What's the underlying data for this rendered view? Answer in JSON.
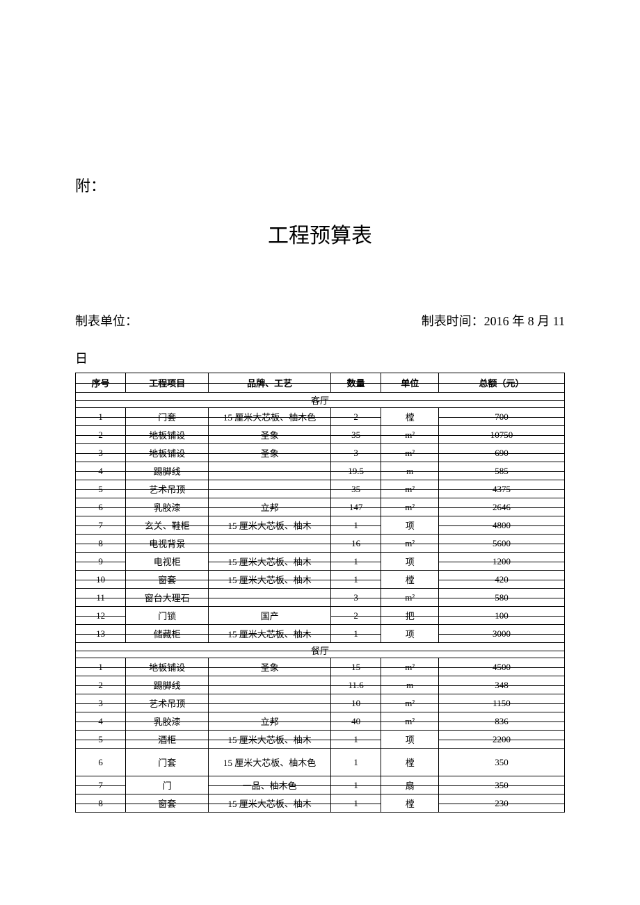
{
  "attachment_label": "附：",
  "title": "工程预算表",
  "maker_label": "制表单位：",
  "date_label": "制表时间：2016 年 8 月 11",
  "date_suffix": "日",
  "headers": {
    "seq": "序号",
    "item": "工程项目",
    "brand": "品牌、工艺",
    "qty": "数量",
    "unit": "单位",
    "total": "总额（元）"
  },
  "sections": [
    {
      "name": "客厅",
      "rows": [
        {
          "seq": "1",
          "item": "门套",
          "brand": "15 厘米大芯板、柚木色",
          "qty": "2",
          "unit": "樘",
          "total": "700",
          "strike": true,
          "unit_plain": true
        },
        {
          "seq": "2",
          "item": "地板铺设",
          "brand": "圣象",
          "qty": "35",
          "unit": "m²",
          "total": "10750",
          "strike": true
        },
        {
          "seq": "3",
          "item": "地板铺设",
          "brand": "圣象",
          "qty": "3",
          "unit": "m²",
          "total": "690",
          "strike": true
        },
        {
          "seq": "4",
          "item": "踢脚线",
          "brand": "",
          "qty": "19.5",
          "unit": "m",
          "total": "585",
          "strike": true
        },
        {
          "seq": "5",
          "item": "艺术吊顶",
          "brand": "",
          "qty": "35",
          "unit": "m²",
          "total": "4375",
          "strike": true
        },
        {
          "seq": "6",
          "item": "乳胶漆",
          "brand": "立邦",
          "qty": "147",
          "unit": "m²",
          "total": "2646",
          "strike": true
        },
        {
          "seq": "7",
          "item": "玄关、鞋柜",
          "brand": "15 厘米大芯板、柚木",
          "qty": "1",
          "unit": "项",
          "total": "4800",
          "strike": true,
          "unit_plain": true
        },
        {
          "seq": "8",
          "item": "电视背景",
          "brand": "",
          "qty": "16",
          "unit": "m²",
          "total": "5600",
          "strike": true
        },
        {
          "seq": "9",
          "item": "电视柜",
          "brand": "15 厘米大芯板、柚木",
          "qty": "1",
          "unit": "项",
          "total": "1200",
          "strike": true,
          "item_plain": true,
          "unit_plain": true
        },
        {
          "seq": "10",
          "item": "窗套",
          "brand": "15 厘米大芯板、柚木",
          "qty": "1",
          "unit": "樘",
          "total": "420",
          "strike": true,
          "unit_plain": true
        },
        {
          "seq": "11",
          "item": "窗台大理石",
          "brand": "",
          "qty": "3",
          "unit": "m²",
          "total": "580",
          "strike": true
        },
        {
          "seq": "12",
          "item": "门锁",
          "brand": "国产",
          "qty": "2",
          "unit": "把",
          "total": "100",
          "strike": true,
          "item_plain": true,
          "brand_plain": true
        },
        {
          "seq": "13",
          "item": "储藏柜",
          "brand": "15 厘米大芯板、柚木",
          "qty": "1",
          "unit": "项",
          "total": "3000",
          "strike": true,
          "unit_plain": true
        }
      ]
    },
    {
      "name": "餐厅",
      "rows": [
        {
          "seq": "1",
          "item": "地板铺设",
          "brand": "圣象",
          "qty": "15",
          "unit": "m²",
          "total": "4500",
          "strike": true
        },
        {
          "seq": "2",
          "item": "踢脚线",
          "brand": "",
          "qty": "11.6",
          "unit": "m",
          "total": "348",
          "strike": true
        },
        {
          "seq": "3",
          "item": "艺术吊顶",
          "brand": "",
          "qty": "10",
          "unit": "m²",
          "total": "1150",
          "strike": true
        },
        {
          "seq": "4",
          "item": "乳胶漆",
          "brand": "立邦",
          "qty": "40",
          "unit": "m²",
          "total": "836",
          "strike": true
        },
        {
          "seq": "5",
          "item": "酒柜",
          "brand": "15 厘米大芯板、柚木",
          "qty": "1",
          "unit": "项",
          "total": "2200",
          "strike": true,
          "unit_plain": true
        },
        {
          "seq": "6",
          "item": "门套",
          "brand": "15 厘米大芯板、柚木色",
          "qty": "1",
          "unit": "樘",
          "total": "350",
          "plain_row": true,
          "tall": true
        },
        {
          "seq": "7",
          "item": "门",
          "brand": "一品、柚木色",
          "qty": "1",
          "unit": "扇",
          "total": "350",
          "strike": true,
          "item_plain": true
        },
        {
          "seq": "8",
          "item": "窗套",
          "brand": "15 厘米大芯板、柚木",
          "qty": "1",
          "unit": "樘",
          "total": "230",
          "strike": true,
          "unit_plain": true
        }
      ]
    }
  ]
}
